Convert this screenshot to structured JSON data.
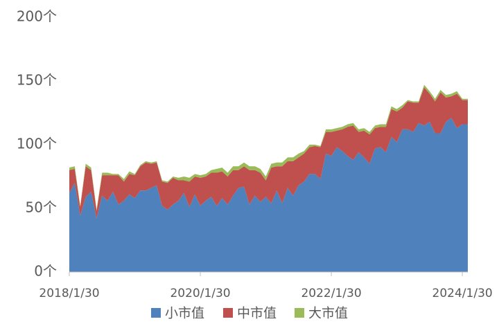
{
  "chart_data": {
    "type": "stacked_area",
    "categories": [
      "2018/1/30",
      null,
      null,
      null,
      null,
      null,
      null,
      null,
      null,
      null,
      null,
      null,
      null,
      null,
      null,
      null,
      null,
      null,
      null,
      null,
      null,
      null,
      null,
      null,
      "2020/1/30",
      null,
      null,
      null,
      null,
      null,
      null,
      null,
      null,
      null,
      null,
      null,
      null,
      null,
      null,
      null,
      null,
      null,
      null,
      null,
      null,
      null,
      null,
      null,
      "2022/1/30",
      null,
      null,
      null,
      null,
      null,
      null,
      null,
      null,
      null,
      null,
      null,
      null,
      null,
      null,
      null,
      null,
      null,
      null,
      null,
      null,
      null,
      null,
      null,
      "2024/1/30",
      null
    ],
    "series": [
      {
        "name": "小市值",
        "color": "#4f81bd",
        "values": [
          62,
          70,
          44,
          59,
          63,
          42,
          60,
          56,
          63,
          53,
          56,
          61,
          58,
          64,
          64,
          66,
          68,
          52,
          49,
          53,
          56,
          62,
          51,
          61,
          52,
          56,
          59,
          52,
          58,
          53,
          60,
          66,
          67,
          53,
          60,
          55,
          59,
          54,
          64,
          54,
          66,
          60,
          68,
          71,
          77,
          77,
          73,
          93,
          91,
          98,
          95,
          91,
          88,
          94,
          90,
          85,
          97,
          98,
          94,
          106,
          102,
          112,
          112,
          110,
          117,
          115,
          118,
          109,
          109,
          118,
          121,
          113,
          116,
          116
        ]
      },
      {
        "name": "中市值",
        "color": "#c0504d",
        "values": [
          18,
          11,
          7,
          24,
          17,
          6,
          16,
          20,
          13,
          23,
          15,
          16,
          18,
          19,
          22,
          19,
          18,
          19,
          21,
          21,
          16,
          10,
          20,
          14,
          22,
          19,
          19,
          26,
          21,
          22,
          20,
          14,
          16,
          27,
          20,
          23,
          13,
          28,
          19,
          29,
          21,
          27,
          22,
          22,
          21,
          22,
          25,
          17,
          19,
          13,
          17,
          23,
          27,
          16,
          21,
          23,
          16,
          16,
          20,
          22,
          24,
          17,
          22,
          23,
          16,
          30,
          22,
          25,
          32,
          19,
          17,
          27,
          19,
          19
        ]
      },
      {
        "name": "大市值",
        "color": "#9bbb59",
        "values": [
          2,
          2,
          1,
          2,
          2,
          1,
          2,
          2,
          1,
          1,
          2,
          2,
          1,
          1,
          1,
          1,
          1,
          1,
          1,
          1,
          2,
          3,
          3,
          2,
          2,
          2,
          2,
          3,
          3,
          3,
          3,
          3,
          3,
          3,
          3,
          3,
          3,
          3,
          3,
          3,
          3,
          3,
          3,
          2,
          2,
          1,
          1,
          2,
          2,
          2,
          2,
          2,
          2,
          2,
          2,
          2,
          2,
          2,
          2,
          2,
          2,
          2,
          1,
          1,
          1,
          2,
          2,
          2,
          2,
          2,
          2,
          2,
          1,
          1
        ]
      }
    ],
    "ylim": [
      0,
      200
    ],
    "yticks": [
      {
        "value": 0,
        "label": "0个"
      },
      {
        "value": 50,
        "label": "50个"
      },
      {
        "value": 100,
        "label": "100个"
      },
      {
        "value": 150,
        "label": "150个"
      },
      {
        "value": 200,
        "label": "200个"
      }
    ],
    "grid": false,
    "legend": "bottom"
  }
}
